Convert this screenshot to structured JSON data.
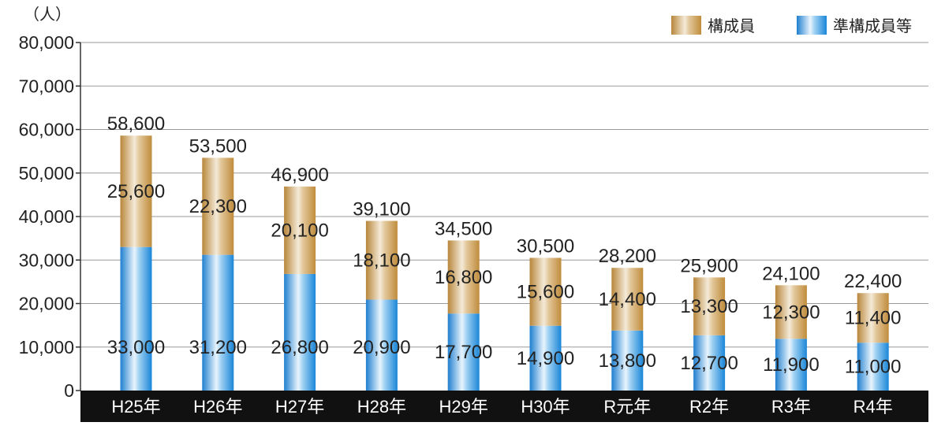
{
  "chart_data": {
    "type": "bar",
    "stacked": true,
    "title": "",
    "unit": "（人）",
    "categories": [
      "H25年",
      "H26年",
      "H27年",
      "H28年",
      "H29年",
      "H30年",
      "R元年",
      "R2年",
      "R3年",
      "R4年"
    ],
    "series": [
      {
        "name": "準構成員等",
        "values": [
          33000,
          31200,
          26800,
          20900,
          17700,
          14900,
          13800,
          12700,
          11900,
          11000
        ]
      },
      {
        "name": "構成員",
        "values": [
          25600,
          22300,
          20100,
          18100,
          16800,
          15600,
          14400,
          13300,
          12300,
          11400
        ]
      }
    ],
    "totals": [
      58600,
      53500,
      46900,
      39100,
      34500,
      30500,
      28200,
      25900,
      24100,
      22400
    ],
    "yticks": [
      "0",
      "10,000",
      "20,000",
      "30,000",
      "40,000",
      "50,000",
      "60,000",
      "70,000",
      "80,000"
    ],
    "ylim": [
      0,
      80000
    ],
    "grid": true,
    "legend_position": "top-right",
    "colors": {
      "構成員": "#c89a4a",
      "準構成員等": "#2a8fd8",
      "axis_band": "#111111",
      "grid": "#999999"
    }
  }
}
